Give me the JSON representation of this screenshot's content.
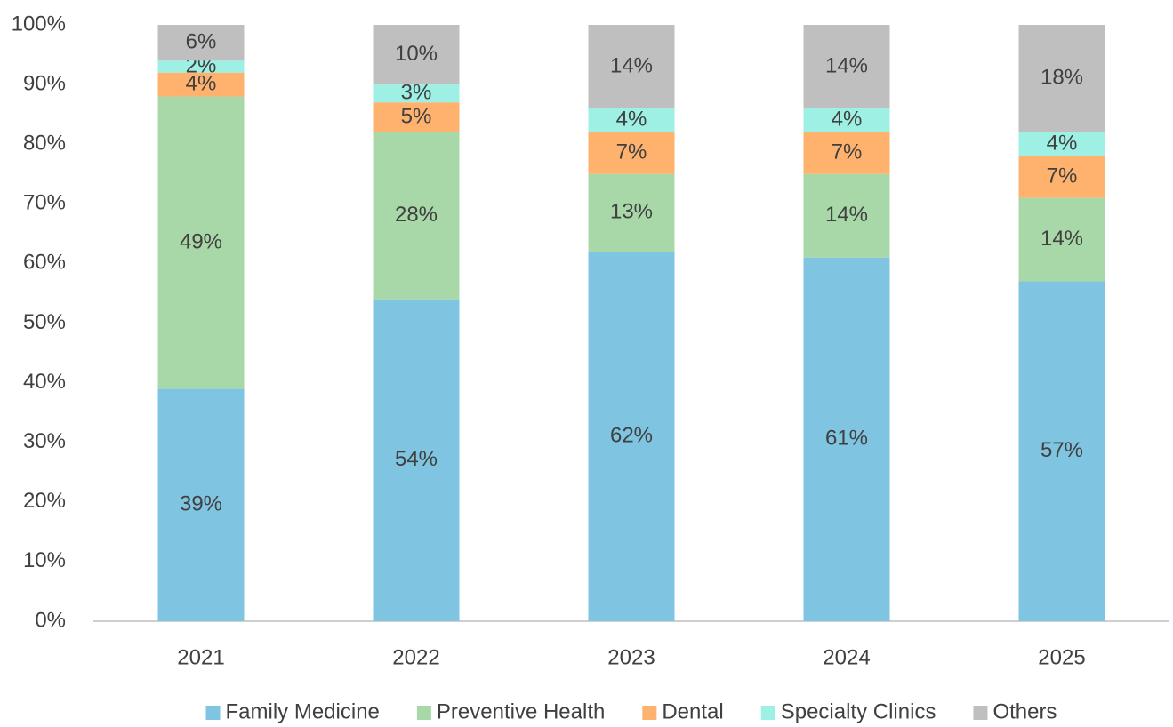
{
  "chart_data": {
    "type": "stacked_bar",
    "categories": [
      "2021",
      "2022",
      "2023",
      "2024",
      "2025"
    ],
    "series": [
      {
        "name": "Family Medicine",
        "color": "#7fc4e0",
        "values": [
          39,
          54,
          62,
          61,
          57
        ],
        "value_labels": [
          "39%",
          "54%",
          "62%",
          "61%",
          "57%"
        ]
      },
      {
        "name": "Preventive Health",
        "color": "#a8d8a8",
        "values": [
          49,
          28,
          13,
          14,
          14
        ],
        "value_labels": [
          "49%",
          "28%",
          "13%",
          "14%",
          "14%"
        ]
      },
      {
        "name": "Dental",
        "color": "#ffb26e",
        "values": [
          4,
          5,
          7,
          7,
          7
        ],
        "value_labels": [
          "4%",
          "5%",
          "7%",
          "7%",
          "7%"
        ]
      },
      {
        "name": "Specialty Clinics",
        "color": "#9ef0e4",
        "values": [
          2,
          3,
          4,
          4,
          4
        ],
        "value_labels": [
          "2%",
          "3%",
          "4%",
          "4%",
          "4%"
        ]
      },
      {
        "name": "Others",
        "color": "#bfbfbf",
        "values": [
          6,
          10,
          14,
          14,
          18
        ],
        "value_labels": [
          "6%",
          "10%",
          "14%",
          "14%",
          "18%"
        ]
      }
    ],
    "ylim": [
      0,
      100
    ],
    "yticks": [
      {
        "value": 0,
        "label": "0%"
      },
      {
        "value": 10,
        "label": "10%"
      },
      {
        "value": 20,
        "label": "20%"
      },
      {
        "value": 30,
        "label": "30%"
      },
      {
        "value": 40,
        "label": "40%"
      },
      {
        "value": 50,
        "label": "50%"
      },
      {
        "value": 60,
        "label": "60%"
      },
      {
        "value": 70,
        "label": "70%"
      },
      {
        "value": 80,
        "label": "80%"
      },
      {
        "value": 90,
        "label": "90%"
      },
      {
        "value": 100,
        "label": "100%"
      }
    ],
    "grid": false,
    "legend": "bottom"
  }
}
